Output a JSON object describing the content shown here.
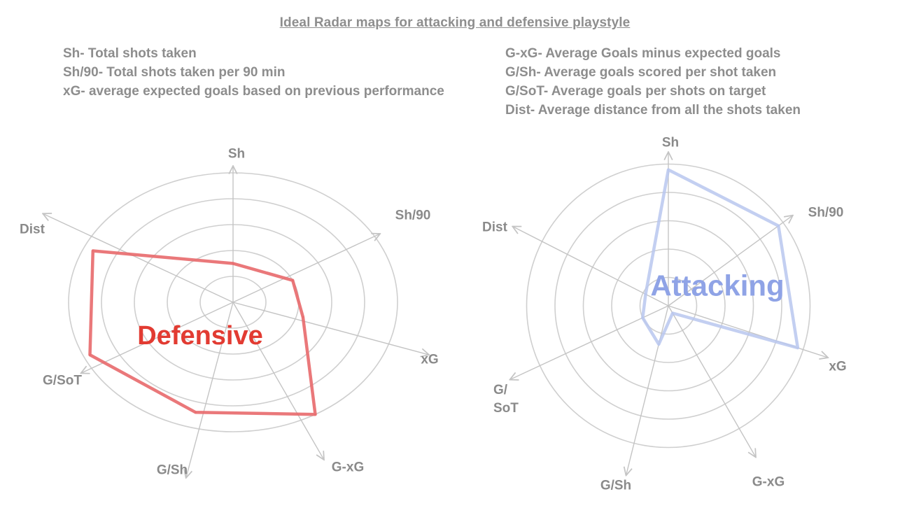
{
  "title": "Ideal Radar maps for attacking and defensive playstyle",
  "legend_left": [
    "Sh- Total shots taken",
    "Sh/90- Total shots taken per 90 min",
    "xG- average expected goals based on previous performance"
  ],
  "legend_right": [
    "G-xG- Average Goals minus expected goals",
    "G/Sh- Average goals scored per shot taken",
    "G/SoT- Average goals per shots on target",
    "Dist- Average distance from all the shots taken"
  ],
  "colors": {
    "defensive": "#e8696b",
    "defensive_text": "#e23b32",
    "attacking": "#b9c7ef",
    "attacking_text": "#8fa3e6",
    "grid": "#cfcfcf",
    "axis": "#c4c4c4"
  },
  "chart_data": [
    {
      "type": "radar",
      "label": "Defensive",
      "axes": [
        "Sh",
        "Sh/90",
        "xG",
        "G-xG",
        "G/Sh",
        "G/SoT",
        "Dist"
      ],
      "axis_labels": [
        "Sh",
        "Sh/90",
        "xG",
        "G-xG",
        "G/Sh",
        "G/SoT",
        "Dist"
      ],
      "rings": 5,
      "values": [
        1.5,
        2.0,
        2.2,
        5.0,
        4.4,
        4.8,
        4.7
      ]
    },
    {
      "type": "radar",
      "label": "Attacking",
      "axes": [
        "Sh",
        "Sh/90",
        "xG",
        "G-xG",
        "G/Sh",
        "G/SoT",
        "Dist"
      ],
      "axis_labels": [
        "Sh",
        "Sh/90",
        "G-xG",
        "G/Sh",
        "Dist"
      ],
      "axis_labels_multiline": {
        "xG": "xG",
        "G/SoT": [
          "G/",
          "SoT"
        ]
      },
      "rings": 5,
      "values": [
        4.8,
        4.8,
        4.8,
        0.3,
        1.4,
        1.0,
        0.9
      ]
    }
  ]
}
